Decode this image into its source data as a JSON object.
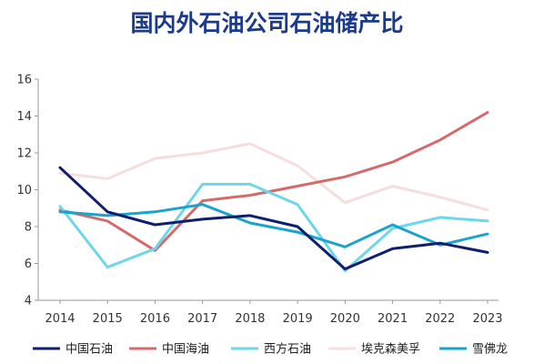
{
  "chart_data": {
    "type": "line",
    "title": "国内外石油公司石油储产比",
    "xlabel": "",
    "ylabel": "",
    "x": [
      "2014",
      "2015",
      "2016",
      "2017",
      "2018",
      "2019",
      "2020",
      "2021",
      "2022",
      "2023"
    ],
    "ylim": [
      4,
      16
    ],
    "yticks": [
      4,
      6,
      8,
      10,
      12,
      14,
      16
    ],
    "grid": false,
    "legend_position": "bottom",
    "series": [
      {
        "name": "中国石油",
        "color": "#0d1f6e",
        "values": [
          11.2,
          8.8,
          8.1,
          8.4,
          8.6,
          8.0,
          5.7,
          6.8,
          7.1,
          6.6
        ]
      },
      {
        "name": "中国海油",
        "color": "#d46a6a",
        "values": [
          8.9,
          8.3,
          6.7,
          9.4,
          9.7,
          10.2,
          10.7,
          11.5,
          12.7,
          14.2
        ]
      },
      {
        "name": "西方石油",
        "color": "#6dd7ea",
        "values": [
          9.1,
          5.8,
          6.8,
          10.3,
          10.3,
          9.2,
          5.6,
          7.9,
          8.5,
          8.3
        ]
      },
      {
        "name": "埃克森美孚",
        "color": "#f6dede",
        "values": [
          10.9,
          10.6,
          11.7,
          12.0,
          12.5,
          11.3,
          9.3,
          10.2,
          9.6,
          8.9
        ]
      },
      {
        "name": "雪佛龙",
        "color": "#1aa3cb",
        "values": [
          8.8,
          8.6,
          8.8,
          9.2,
          8.2,
          7.7,
          6.9,
          8.1,
          7.0,
          7.6
        ]
      }
    ]
  }
}
